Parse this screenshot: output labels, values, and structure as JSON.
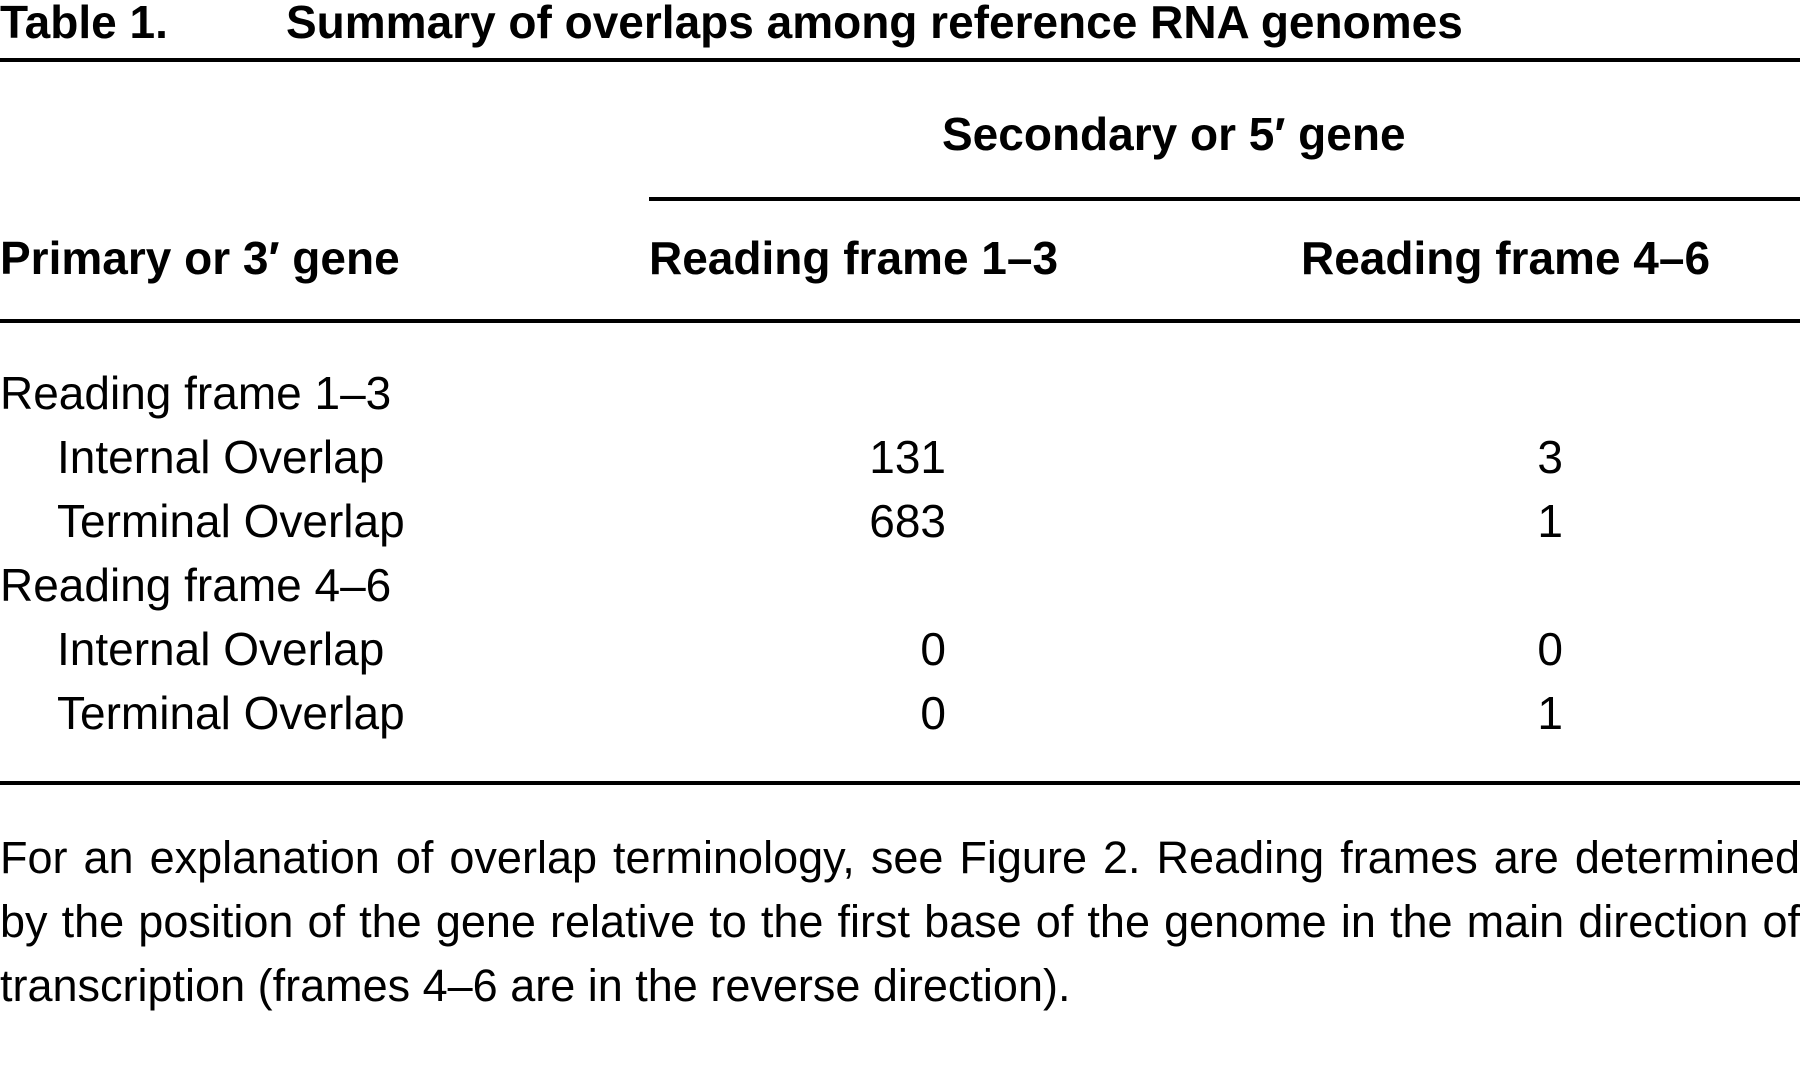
{
  "table": {
    "label": "Table 1.",
    "title": "Summary of overlaps among reference RNA genomes",
    "spanner": "Secondary or 5′ gene",
    "header": [
      "Primary or 3′ gene",
      "Reading frame 1–3",
      "Reading frame 4–6"
    ],
    "groups": [
      {
        "label": "Reading frame 1–3",
        "rows": [
          [
            "Internal Overlap",
            131,
            3
          ],
          [
            "Terminal Overlap",
            683,
            1
          ]
        ]
      },
      {
        "label": "Reading frame 4–6",
        "rows": [
          [
            "Internal Overlap",
            0,
            0
          ],
          [
            "Terminal Overlap",
            0,
            1
          ]
        ]
      }
    ],
    "footnote": "For an explanation of overlap terminology, see Figure 2. Reading frames are determined by the position of the gene relative to the first base of the genome in the main direction of transcription (frames 4–6 are in the reverse direction)."
  }
}
